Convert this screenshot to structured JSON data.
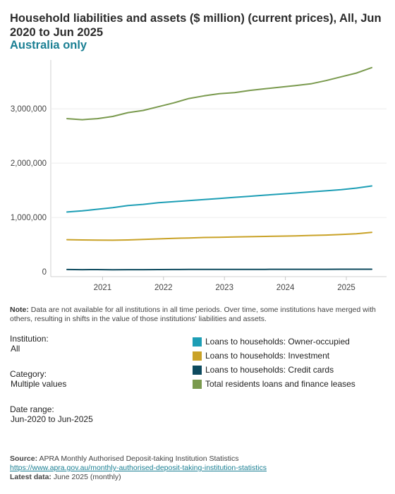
{
  "header": {
    "title": "Household liabilities and assets ($ million) (current prices), All, Jun 2020 to Jun 2025",
    "subtitle": "Australia only"
  },
  "note": {
    "label": "Note:",
    "text": "Data are not available for all institutions in all time periods. Over time, some institutions have merged with others, resulting in shifts in the value of those institutions' liabilities and assets."
  },
  "filters": {
    "institution_label": "Institution:",
    "institution_value": "All",
    "category_label": "Category:",
    "category_value": "Multiple values",
    "date_label": "Date range:",
    "date_value": "Jun-2020 to Jun-2025"
  },
  "source": {
    "label": "Source:",
    "text": "APRA Monthly Authorised Deposit-taking Institution Statistics",
    "link": "https://www.apra.gov.au/monthly-authorised-deposit-taking-institution-statistics",
    "latest_label": "Latest data:",
    "latest_value": "June 2025 (monthly)"
  },
  "colors": {
    "owner_occupied": "#1d9eb5",
    "investment": "#c9a227",
    "credit_cards": "#0d4a5e",
    "total": "#7a9a4e"
  },
  "chart_data": {
    "type": "line",
    "x": [
      "2020-06",
      "2020-09",
      "2020-12",
      "2021-03",
      "2021-06",
      "2021-09",
      "2021-12",
      "2022-03",
      "2022-06",
      "2022-09",
      "2022-12",
      "2023-03",
      "2023-06",
      "2023-09",
      "2023-12",
      "2024-03",
      "2024-06",
      "2024-09",
      "2024-12",
      "2025-03",
      "2025-06"
    ],
    "xticks": [
      "2021",
      "2022",
      "2023",
      "2024",
      "2025"
    ],
    "yticks": [
      "0",
      "1,000,000",
      "2,000,000",
      "3,000,000"
    ],
    "ylim": [
      0,
      3900000
    ],
    "grid": true,
    "series": [
      {
        "name": "Loans to households: Owner-occupied",
        "color_key": "owner_occupied",
        "values": [
          1100000,
          1120000,
          1150000,
          1180000,
          1220000,
          1240000,
          1270000,
          1290000,
          1310000,
          1330000,
          1350000,
          1370000,
          1390000,
          1410000,
          1430000,
          1450000,
          1470000,
          1490000,
          1510000,
          1540000,
          1580000
        ]
      },
      {
        "name": "Loans to households: Investment",
        "color_key": "investment",
        "values": [
          590000,
          585000,
          583000,
          580000,
          585000,
          595000,
          605000,
          615000,
          622000,
          630000,
          635000,
          640000,
          645000,
          650000,
          655000,
          660000,
          668000,
          675000,
          685000,
          700000,
          725000
        ]
      },
      {
        "name": "Loans to households: Credit cards",
        "color_key": "credit_cards",
        "values": [
          40000,
          38000,
          39000,
          37000,
          38000,
          38000,
          39000,
          40000,
          41000,
          41000,
          42000,
          42000,
          43000,
          43000,
          44000,
          44000,
          44000,
          44000,
          45000,
          45000,
          45000
        ]
      },
      {
        "name": "Total residents loans and finance leases",
        "color_key": "total",
        "values": [
          2820000,
          2800000,
          2820000,
          2860000,
          2930000,
          2970000,
          3040000,
          3110000,
          3190000,
          3240000,
          3280000,
          3300000,
          3340000,
          3370000,
          3400000,
          3430000,
          3460000,
          3520000,
          3590000,
          3660000,
          3760000
        ]
      }
    ]
  }
}
